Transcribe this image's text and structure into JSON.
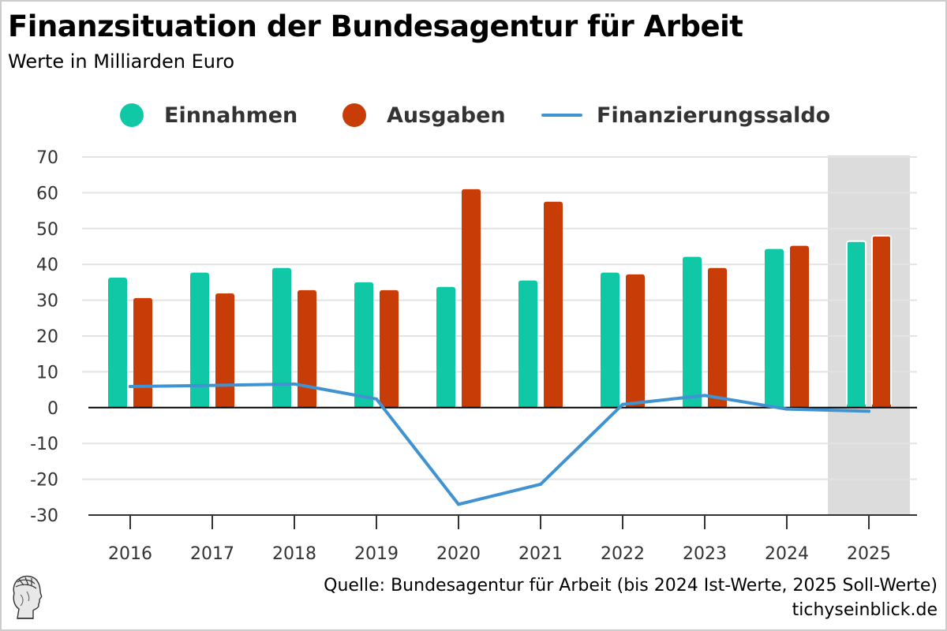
{
  "header": {
    "title": "Finanzsituation der Bundesagentur für Arbeit",
    "subtitle": "Werte in Milliarden Euro"
  },
  "legend": [
    {
      "label": "Einnahmen",
      "kind": "dot",
      "color": "#10c8a5"
    },
    {
      "label": "Ausgaben",
      "kind": "dot",
      "color": "#c83c08"
    },
    {
      "label": "Finanzierungssaldo",
      "kind": "line",
      "color": "#4093d0"
    }
  ],
  "footer": {
    "source": "Quelle: Bundesagentur für Arbeit (bis 2024 Ist-Werte, 2025 Soll-Werte)",
    "site": "tichyseinblick.de",
    "logo_icon": "hermes-head-logo-icon"
  },
  "chart_data": {
    "type": "bar",
    "title": "Finanzsituation der Bundesagentur für Arbeit",
    "subtitle": "Werte in Milliarden Euro",
    "xlabel": "",
    "ylabel": "",
    "categories": [
      "2016",
      "2017",
      "2018",
      "2019",
      "2020",
      "2021",
      "2022",
      "2023",
      "2024",
      "2025"
    ],
    "series": [
      {
        "name": "Einnahmen",
        "type": "bar",
        "color": "#10c8a5",
        "values": [
          36.3,
          37.7,
          39.0,
          35.0,
          33.7,
          35.5,
          37.7,
          42.1,
          44.3,
          46.5
        ]
      },
      {
        "name": "Ausgaben",
        "type": "bar",
        "color": "#c83c08",
        "values": [
          30.6,
          31.9,
          32.8,
          32.8,
          61.0,
          57.5,
          37.2,
          39.0,
          45.2,
          48.0
        ]
      },
      {
        "name": "Finanzierungssaldo",
        "type": "line",
        "color": "#4093d0",
        "values": [
          5.9,
          6.2,
          6.6,
          2.4,
          -27.0,
          -21.4,
          0.9,
          3.4,
          -0.4,
          -1.0
        ]
      }
    ],
    "ylim": [
      -30,
      70
    ],
    "yticks": [
      70,
      60,
      50,
      40,
      30,
      20,
      10,
      0,
      -10,
      -20,
      -30
    ],
    "ytick_labels": [
      "70",
      "60",
      "50",
      "40",
      "30",
      "20",
      "10",
      "0",
      "-10",
      "-20",
      "-30"
    ],
    "grid": true,
    "highlighted_category": "2025",
    "highlight_note": "2025 Soll-Werte (planned)",
    "legend_position": "top-center"
  }
}
